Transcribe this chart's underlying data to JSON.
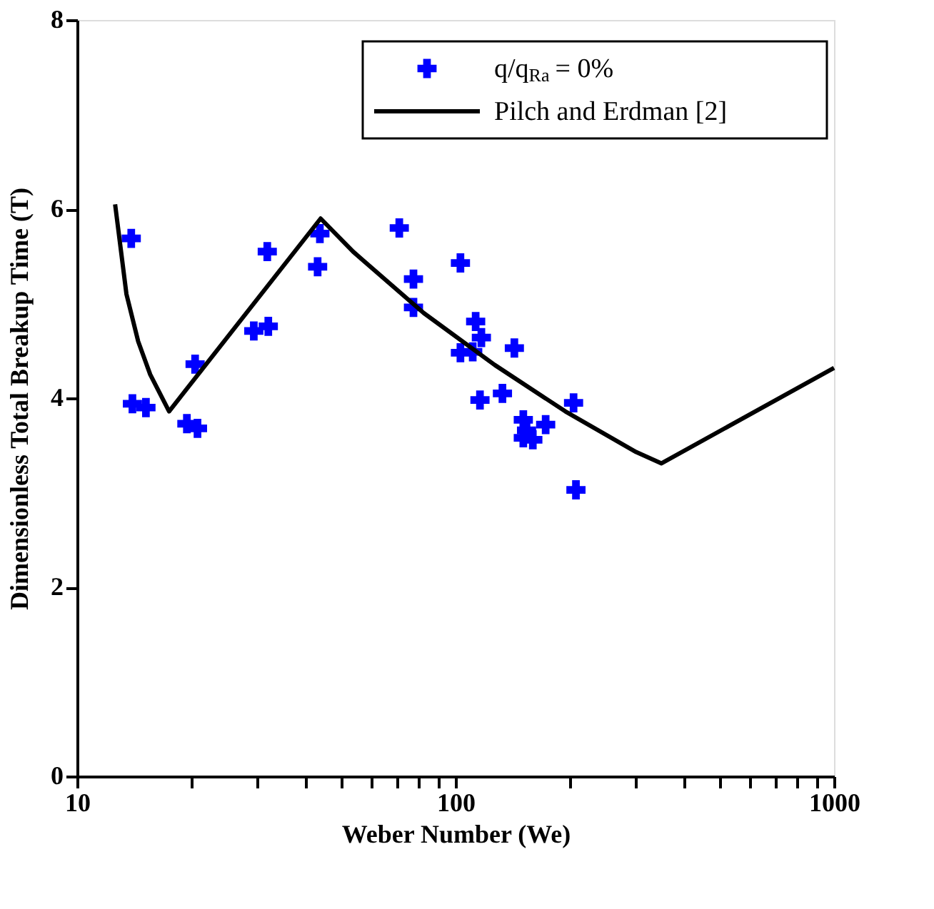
{
  "chart_data": {
    "type": "scatter",
    "xlabel": "Weber Number (We)",
    "ylabel": "Dimensionless Total Breakup Time (T)",
    "series": [
      {
        "name": "q/q$_{Ra}$ = 0%",
        "color": "#0000ff",
        "marker": "cross",
        "x": [
          13.9,
          14.0,
          15.2,
          19.5,
          20.8,
          20.5,
          29.3,
          32.0,
          31.8,
          43.8,
          43.2,
          71.0,
          103,
          77.4,
          77.4,
          113,
          117,
          103,
          111,
          143,
          116,
          133,
          151,
          173,
          151,
          160,
          154,
          205,
          208
        ],
        "values": [
          5.69,
          3.94,
          3.9,
          3.73,
          3.68,
          4.36,
          4.71,
          4.76,
          5.55,
          5.74,
          5.39,
          5.8,
          5.43,
          5.26,
          4.96,
          4.81,
          4.64,
          4.48,
          4.49,
          4.53,
          3.98,
          4.05,
          3.77,
          3.72,
          3.58,
          3.56,
          3.66,
          3.95,
          3.03
        ]
      },
      {
        "name": "Pilch and Erdman [2]",
        "type": "line",
        "color": "#000000",
        "line_style": "solid",
        "marker": "none",
        "x": [
          12.6,
          13.5,
          14.5,
          15.6,
          17.5,
          44,
          53.6,
          82.4,
          127,
          195,
          300,
          350,
          1000
        ],
        "values": [
          6.05,
          5.1,
          4.6,
          4.25,
          3.86,
          5.9,
          5.55,
          4.9,
          4.35,
          3.86,
          3.43,
          3.31,
          4.32
        ]
      }
    ],
    "log": "x",
    "xlim": [
      10,
      1000
    ],
    "xticks": [
      10,
      {
        "value": 20,
        "label": null
      },
      {
        "value": 30,
        "label": null
      },
      {
        "value": 40,
        "label": null
      },
      {
        "value": 50,
        "label": null
      },
      {
        "value": 60,
        "label": null
      },
      {
        "value": 70,
        "label": null
      },
      {
        "value": 80,
        "label": null
      },
      {
        "value": 90,
        "label": null
      },
      100,
      {
        "value": 200,
        "label": null
      },
      {
        "value": 300,
        "label": null
      },
      {
        "value": 400,
        "label": null
      },
      {
        "value": 500,
        "label": null
      },
      {
        "value": 600,
        "label": null
      },
      {
        "value": 700,
        "label": null
      },
      {
        "value": 800,
        "label": null
      },
      {
        "value": 900,
        "label": null
      },
      1000
    ],
    "ylim": [
      0,
      8
    ],
    "yticks": [
      0,
      2,
      4,
      6,
      8
    ],
    "grid": false,
    "legend": "top right"
  }
}
